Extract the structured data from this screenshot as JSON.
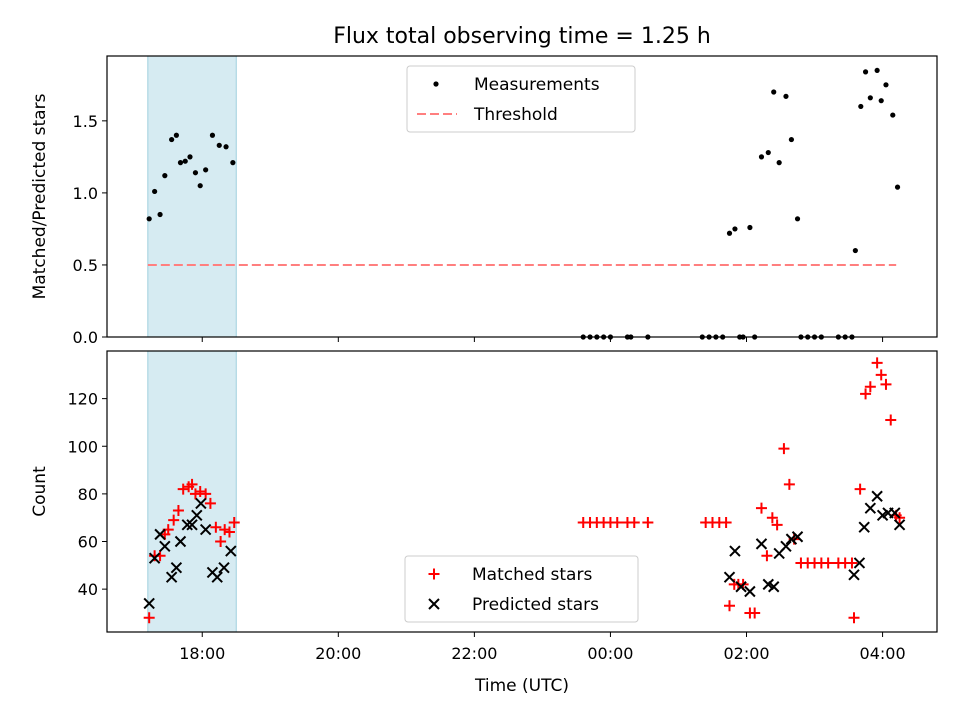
{
  "title": "Flux total observing time = 1.25 h",
  "chart_data": [
    {
      "type": "scatter",
      "ylabel": "Matched/Predicted stars",
      "ylim": [
        0,
        1.95
      ],
      "y_ticks": [
        "0.0",
        "0.5",
        "1.0",
        "1.5"
      ],
      "x_tick_labels": [
        "18:00",
        "20:00",
        "22:00",
        "00:00",
        "02:00",
        "04:00"
      ],
      "x_range_hours": [
        16.6,
        28.8
      ],
      "highlight_span_hours": [
        17.2,
        18.5
      ],
      "threshold": {
        "name": "Threshold",
        "value": 0.5,
        "x_range_hours": [
          17.2,
          28.2
        ]
      },
      "legend": {
        "position": "top-center",
        "entries": [
          "Measurements",
          "Threshold"
        ]
      },
      "series": [
        {
          "name": "Measurements",
          "points": [
            [
              17.22,
              0.82
            ],
            [
              17.3,
              1.01
            ],
            [
              17.38,
              0.85
            ],
            [
              17.45,
              1.12
            ],
            [
              17.55,
              1.37
            ],
            [
              17.62,
              1.4
            ],
            [
              17.68,
              1.21
            ],
            [
              17.75,
              1.22
            ],
            [
              17.82,
              1.25
            ],
            [
              17.9,
              1.14
            ],
            [
              17.97,
              1.05
            ],
            [
              18.05,
              1.16
            ],
            [
              18.15,
              1.4
            ],
            [
              18.25,
              1.33
            ],
            [
              18.35,
              1.32
            ],
            [
              18.45,
              1.21
            ],
            [
              23.6,
              0
            ],
            [
              23.7,
              0
            ],
            [
              23.8,
              0
            ],
            [
              23.9,
              0
            ],
            [
              24.0,
              0
            ],
            [
              24.25,
              0
            ],
            [
              24.3,
              0
            ],
            [
              24.55,
              0
            ],
            [
              25.35,
              0
            ],
            [
              25.45,
              0
            ],
            [
              25.55,
              0
            ],
            [
              25.65,
              0
            ],
            [
              25.75,
              0.72
            ],
            [
              25.83,
              0.75
            ],
            [
              25.9,
              0
            ],
            [
              25.95,
              0
            ],
            [
              26.05,
              0.76
            ],
            [
              26.12,
              0
            ],
            [
              26.22,
              1.25
            ],
            [
              26.32,
              1.28
            ],
            [
              26.4,
              1.7
            ],
            [
              26.48,
              1.21
            ],
            [
              26.58,
              1.67
            ],
            [
              26.66,
              1.37
            ],
            [
              26.75,
              0.82
            ],
            [
              26.8,
              0
            ],
            [
              26.9,
              0
            ],
            [
              27.0,
              0
            ],
            [
              27.1,
              0
            ],
            [
              27.35,
              0
            ],
            [
              27.45,
              0
            ],
            [
              27.55,
              0
            ],
            [
              27.6,
              0.6
            ],
            [
              27.68,
              1.6
            ],
            [
              27.75,
              1.84
            ],
            [
              27.82,
              1.66
            ],
            [
              27.92,
              1.85
            ],
            [
              27.98,
              1.64
            ],
            [
              28.05,
              1.75
            ],
            [
              28.15,
              1.54
            ],
            [
              28.22,
              1.04
            ]
          ]
        }
      ]
    },
    {
      "type": "scatter",
      "xlabel": "Time (UTC)",
      "ylabel": "Count",
      "ylim": [
        22,
        140
      ],
      "y_ticks": [
        "40",
        "60",
        "80",
        "100",
        "120"
      ],
      "x_tick_labels": [
        "18:00",
        "20:00",
        "22:00",
        "00:00",
        "02:00",
        "04:00"
      ],
      "x_range_hours": [
        16.6,
        28.8
      ],
      "highlight_span_hours": [
        17.2,
        18.5
      ],
      "legend": {
        "position": "bottom-center",
        "entries": [
          "Matched stars",
          "Predicted stars"
        ]
      },
      "series": [
        {
          "name": "Matched stars",
          "color": "#ff0000",
          "marker": "+",
          "points": [
            [
              17.22,
              28
            ],
            [
              17.3,
              54
            ],
            [
              17.38,
              54
            ],
            [
              17.45,
              63
            ],
            [
              17.5,
              65
            ],
            [
              17.58,
              69
            ],
            [
              17.65,
              73
            ],
            [
              17.72,
              82
            ],
            [
              17.8,
              83
            ],
            [
              17.85,
              84
            ],
            [
              17.9,
              80
            ],
            [
              17.97,
              81
            ],
            [
              18.05,
              80
            ],
            [
              18.12,
              76
            ],
            [
              18.2,
              66
            ],
            [
              18.27,
              60
            ],
            [
              18.33,
              65
            ],
            [
              18.4,
              64
            ],
            [
              18.47,
              68
            ],
            [
              23.6,
              68
            ],
            [
              23.7,
              68
            ],
            [
              23.8,
              68
            ],
            [
              23.9,
              68
            ],
            [
              24.0,
              68
            ],
            [
              24.1,
              68
            ],
            [
              24.25,
              68
            ],
            [
              24.35,
              68
            ],
            [
              24.55,
              68
            ],
            [
              25.4,
              68
            ],
            [
              25.5,
              68
            ],
            [
              25.6,
              68
            ],
            [
              25.7,
              68
            ],
            [
              25.75,
              33
            ],
            [
              25.82,
              42
            ],
            [
              25.88,
              42
            ],
            [
              25.95,
              42
            ],
            [
              26.05,
              30
            ],
            [
              26.12,
              30
            ],
            [
              26.22,
              74
            ],
            [
              26.3,
              54
            ],
            [
              26.38,
              70
            ],
            [
              26.45,
              67
            ],
            [
              26.55,
              99
            ],
            [
              26.63,
              84
            ],
            [
              26.7,
              61
            ],
            [
              26.8,
              51
            ],
            [
              26.9,
              51
            ],
            [
              27.0,
              51
            ],
            [
              27.1,
              51
            ],
            [
              27.2,
              51
            ],
            [
              27.35,
              51
            ],
            [
              27.45,
              51
            ],
            [
              27.55,
              51
            ],
            [
              27.58,
              28
            ],
            [
              27.67,
              82
            ],
            [
              27.75,
              122
            ],
            [
              27.82,
              125
            ],
            [
              27.92,
              135
            ],
            [
              27.98,
              130
            ],
            [
              28.05,
              126
            ],
            [
              28.12,
              111
            ],
            [
              28.2,
              71
            ],
            [
              28.25,
              70
            ]
          ]
        },
        {
          "name": "Predicted stars",
          "color": "#000000",
          "marker": "x",
          "points": [
            [
              17.22,
              34
            ],
            [
              17.3,
              53
            ],
            [
              17.38,
              63
            ],
            [
              17.45,
              58
            ],
            [
              17.55,
              45
            ],
            [
              17.62,
              49
            ],
            [
              17.68,
              60
            ],
            [
              17.78,
              67
            ],
            [
              17.85,
              67
            ],
            [
              17.92,
              71
            ],
            [
              17.98,
              76
            ],
            [
              18.05,
              65
            ],
            [
              18.15,
              47
            ],
            [
              18.22,
              45
            ],
            [
              18.32,
              49
            ],
            [
              18.42,
              56
            ],
            [
              25.75,
              45
            ],
            [
              25.83,
              56
            ],
            [
              25.92,
              41
            ],
            [
              26.05,
              39
            ],
            [
              26.22,
              59
            ],
            [
              26.32,
              42
            ],
            [
              26.4,
              41
            ],
            [
              26.48,
              55
            ],
            [
              26.58,
              58
            ],
            [
              26.66,
              61
            ],
            [
              26.75,
              62
            ],
            [
              27.58,
              46
            ],
            [
              27.66,
              51
            ],
            [
              27.73,
              66
            ],
            [
              27.82,
              74
            ],
            [
              27.92,
              79
            ],
            [
              28.0,
              71
            ],
            [
              28.08,
              72
            ],
            [
              28.18,
              72
            ],
            [
              28.25,
              67
            ]
          ]
        }
      ]
    }
  ]
}
